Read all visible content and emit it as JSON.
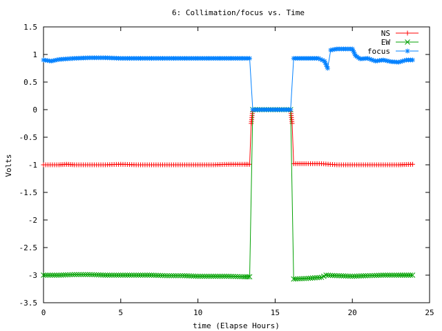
{
  "chart_data": {
    "type": "line",
    "title": "6: Collimation/focus vs. Time",
    "xlabel": "time (Elapse Hours)",
    "ylabel": "Volts",
    "xlim": [
      0,
      25
    ],
    "ylim": [
      -3.5,
      1.5
    ],
    "xticks": [
      0,
      5,
      10,
      15,
      20,
      25
    ],
    "yticks": [
      -3.5,
      -3,
      -2.5,
      -2,
      -1.5,
      -1,
      -0.5,
      0,
      0.5,
      1,
      1.5
    ],
    "grid": false,
    "legend_position": "top-right",
    "series": [
      {
        "name": "NS",
        "color": "#ff0000",
        "marker": "plus",
        "points": [
          [
            0.0,
            -1.0
          ],
          [
            1.0,
            -1.0
          ],
          [
            1.5,
            -0.99
          ],
          [
            2.0,
            -1.0
          ],
          [
            3.0,
            -1.0
          ],
          [
            4.0,
            -1.0
          ],
          [
            5.0,
            -0.99
          ],
          [
            6.0,
            -1.0
          ],
          [
            7.0,
            -1.0
          ],
          [
            8.0,
            -1.0
          ],
          [
            9.0,
            -1.0
          ],
          [
            10.0,
            -1.0
          ],
          [
            11.0,
            -1.0
          ],
          [
            12.0,
            -0.99
          ],
          [
            13.0,
            -0.99
          ],
          [
            13.35,
            -0.99
          ],
          [
            13.45,
            -0.25
          ],
          [
            13.55,
            0.0
          ],
          [
            14.0,
            0.0
          ],
          [
            15.0,
            0.0
          ],
          [
            16.0,
            0.0
          ],
          [
            16.1,
            -0.25
          ],
          [
            16.2,
            -0.98
          ],
          [
            17.0,
            -0.98
          ],
          [
            18.0,
            -0.98
          ],
          [
            19.0,
            -1.0
          ],
          [
            20.0,
            -1.0
          ],
          [
            21.0,
            -1.0
          ],
          [
            22.0,
            -1.0
          ],
          [
            23.0,
            -1.0
          ],
          [
            23.9,
            -0.99
          ]
        ]
      },
      {
        "name": "EW",
        "color": "#00a000",
        "marker": "cross",
        "points": [
          [
            0.0,
            -3.0
          ],
          [
            1.0,
            -3.0
          ],
          [
            2.0,
            -2.99
          ],
          [
            3.0,
            -2.99
          ],
          [
            4.0,
            -3.0
          ],
          [
            5.0,
            -3.0
          ],
          [
            6.0,
            -3.0
          ],
          [
            7.0,
            -3.0
          ],
          [
            8.0,
            -3.01
          ],
          [
            9.0,
            -3.01
          ],
          [
            10.0,
            -3.02
          ],
          [
            11.0,
            -3.02
          ],
          [
            12.0,
            -3.02
          ],
          [
            13.0,
            -3.03
          ],
          [
            13.35,
            -3.03
          ],
          [
            13.55,
            0.0
          ],
          [
            14.0,
            0.0
          ],
          [
            15.0,
            0.0
          ],
          [
            16.0,
            0.0
          ],
          [
            16.2,
            -3.07
          ],
          [
            17.0,
            -3.06
          ],
          [
            18.0,
            -3.04
          ],
          [
            18.3,
            -3.0
          ],
          [
            19.0,
            -3.01
          ],
          [
            20.0,
            -3.02
          ],
          [
            21.0,
            -3.01
          ],
          [
            22.0,
            -3.0
          ],
          [
            23.0,
            -3.0
          ],
          [
            23.9,
            -3.0
          ]
        ]
      },
      {
        "name": "focus",
        "color": "#0080ff",
        "marker": "star",
        "points": [
          [
            0.0,
            0.9
          ],
          [
            0.5,
            0.88
          ],
          [
            1.0,
            0.91
          ],
          [
            2.0,
            0.93
          ],
          [
            3.0,
            0.94
          ],
          [
            4.0,
            0.94
          ],
          [
            5.0,
            0.93
          ],
          [
            6.0,
            0.93
          ],
          [
            7.0,
            0.93
          ],
          [
            8.0,
            0.93
          ],
          [
            9.0,
            0.93
          ],
          [
            10.0,
            0.93
          ],
          [
            11.0,
            0.93
          ],
          [
            12.0,
            0.93
          ],
          [
            13.0,
            0.93
          ],
          [
            13.35,
            0.93
          ],
          [
            13.55,
            0.0
          ],
          [
            14.0,
            0.0
          ],
          [
            15.0,
            0.0
          ],
          [
            16.0,
            0.0
          ],
          [
            16.2,
            0.93
          ],
          [
            17.0,
            0.93
          ],
          [
            17.8,
            0.93
          ],
          [
            18.2,
            0.88
          ],
          [
            18.4,
            0.75
          ],
          [
            18.6,
            1.08
          ],
          [
            19.0,
            1.1
          ],
          [
            20.0,
            1.1
          ],
          [
            20.2,
            0.98
          ],
          [
            20.5,
            0.92
          ],
          [
            21.0,
            0.93
          ],
          [
            21.5,
            0.88
          ],
          [
            22.0,
            0.9
          ],
          [
            22.5,
            0.87
          ],
          [
            23.0,
            0.86
          ],
          [
            23.5,
            0.9
          ],
          [
            23.9,
            0.9
          ]
        ]
      }
    ]
  }
}
